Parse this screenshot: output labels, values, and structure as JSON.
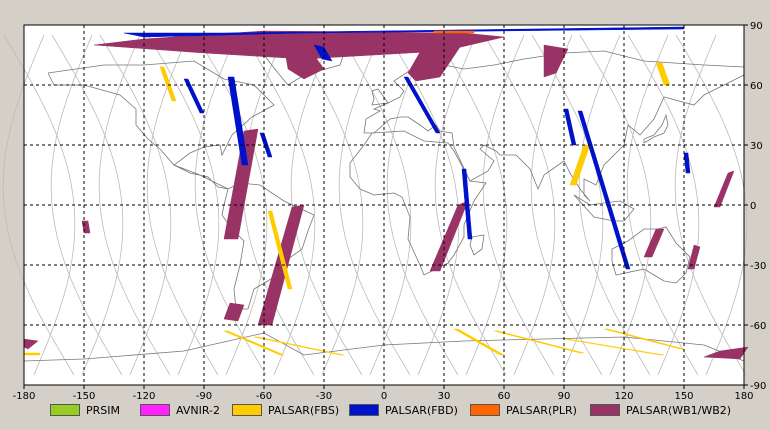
{
  "x_axis": {
    "ticks": [
      -180,
      -150,
      -120,
      -90,
      -60,
      -30,
      0,
      30,
      60,
      90,
      120,
      150,
      180
    ],
    "range": [
      -180,
      180
    ]
  },
  "y_axis": {
    "ticks": [
      90,
      60,
      30,
      0,
      -30,
      -60,
      -90
    ],
    "range": [
      -90,
      90
    ]
  },
  "colors": {
    "prsim": "#99cc22",
    "avnir": "#ff22ff",
    "fbs": "#ffcc00",
    "fbd": "#0011cc",
    "plr": "#ff6600",
    "wb": "#993366",
    "coast": "#777777",
    "orbit": "#bbbbbb"
  },
  "legend": [
    {
      "key": "prsim",
      "label": "PRSIM"
    },
    {
      "key": "avnir",
      "label": "AVNIR-2"
    },
    {
      "key": "fbs",
      "label": "PALSAR(FBS)"
    },
    {
      "key": "fbd",
      "label": "PALSAR(FBD)"
    },
    {
      "key": "plr",
      "label": "PALSAR(PLR)"
    },
    {
      "key": "wb",
      "label": "PALSAR(WB1/WB2)"
    }
  ],
  "swaths": {
    "wb": [
      {
        "p": [
          [
            -70,
            37
          ],
          [
            -63,
            38
          ],
          [
            -73,
            -17
          ],
          [
            -80,
            -17
          ]
        ]
      },
      {
        "p": [
          [
            -46,
            -1
          ],
          [
            -40,
            0
          ],
          [
            -56,
            -60
          ],
          [
            -63,
            -60
          ]
        ]
      },
      {
        "p": [
          [
            -77,
            -49
          ],
          [
            -70,
            -50
          ],
          [
            -73,
            -58
          ],
          [
            -80,
            -57
          ]
        ]
      },
      {
        "p": [
          [
            37,
            0
          ],
          [
            42,
            2
          ],
          [
            28,
            -33
          ],
          [
            23,
            -33
          ]
        ]
      },
      {
        "p": [
          [
            136,
            -12
          ],
          [
            140,
            -12
          ],
          [
            134,
            -26
          ],
          [
            130,
            -26
          ]
        ]
      },
      {
        "p": [
          [
            -151,
            -8
          ],
          [
            -148,
            -8
          ],
          [
            -147,
            -14
          ],
          [
            -150,
            -14
          ]
        ]
      },
      {
        "p": [
          [
            -120,
            83
          ],
          [
            -60,
            87
          ],
          [
            40,
            86
          ],
          [
            60,
            84
          ],
          [
            30,
            77
          ],
          [
            -40,
            73
          ],
          [
            -90,
            76
          ],
          [
            -145,
            80
          ]
        ]
      },
      {
        "p": [
          [
            -50,
            80
          ],
          [
            -40,
            82
          ],
          [
            -30,
            68
          ],
          [
            -40,
            63
          ],
          [
            -48,
            68
          ]
        ]
      },
      {
        "p": [
          [
            20,
            80
          ],
          [
            40,
            82
          ],
          [
            28,
            64
          ],
          [
            16,
            62
          ],
          [
            12,
            66
          ]
        ]
      },
      {
        "p": [
          [
            80,
            80
          ],
          [
            92,
            78
          ],
          [
            86,
            66
          ],
          [
            80,
            64
          ]
        ]
      },
      {
        "p": [
          [
            172,
            16
          ],
          [
            175,
            17
          ],
          [
            168,
            -1
          ],
          [
            165,
            -1
          ]
        ]
      },
      {
        "p": [
          [
            155,
            -20
          ],
          [
            158,
            -21
          ],
          [
            155,
            -32
          ],
          [
            152,
            -32
          ]
        ]
      },
      {
        "p": [
          [
            168,
            -73
          ],
          [
            182,
            -71
          ],
          [
            178,
            -77
          ],
          [
            160,
            -76
          ]
        ]
      },
      {
        "p": [
          [
            -180,
            -67
          ],
          [
            -173,
            -68
          ],
          [
            -178,
            -72
          ],
          [
            -180,
            -71
          ]
        ]
      }
    ],
    "fbd": [
      {
        "p": [
          [
            -80,
            86
          ],
          [
            150,
            89
          ],
          [
            150,
            88
          ],
          [
            -40,
            86
          ],
          [
            -120,
            84
          ],
          [
            -130,
            86
          ]
        ]
      },
      {
        "p": [
          [
            -78,
            64
          ],
          [
            -75,
            64
          ],
          [
            -68,
            20
          ],
          [
            -71,
            20
          ]
        ]
      },
      {
        "p": [
          [
            -35,
            80
          ],
          [
            -30,
            79
          ],
          [
            -26,
            72
          ],
          [
            -31,
            73
          ]
        ]
      },
      {
        "p": [
          [
            -100,
            63
          ],
          [
            -98,
            63
          ],
          [
            -90,
            46
          ],
          [
            -92,
            46
          ]
        ]
      },
      {
        "p": [
          [
            -62,
            36
          ],
          [
            -60,
            36
          ],
          [
            -56,
            24
          ],
          [
            -58,
            24
          ]
        ]
      },
      {
        "p": [
          [
            10,
            64
          ],
          [
            12,
            64
          ],
          [
            28,
            36
          ],
          [
            26,
            36
          ]
        ]
      },
      {
        "p": [
          [
            39,
            18
          ],
          [
            41,
            18
          ],
          [
            44,
            -17
          ],
          [
            42,
            -17
          ]
        ]
      },
      {
        "p": [
          [
            90,
            48
          ],
          [
            92,
            48
          ],
          [
            96,
            30
          ],
          [
            94,
            30
          ]
        ]
      },
      {
        "p": [
          [
            97,
            47
          ],
          [
            99,
            47
          ],
          [
            123,
            -32
          ],
          [
            121,
            -32
          ]
        ]
      },
      {
        "p": [
          [
            150,
            26
          ],
          [
            152,
            26
          ],
          [
            153,
            16
          ],
          [
            151,
            16
          ]
        ]
      }
    ],
    "fbs": [
      {
        "p": [
          [
            -112,
            69
          ],
          [
            -110,
            69
          ],
          [
            -104,
            52
          ],
          [
            -106,
            52
          ]
        ]
      },
      {
        "p": [
          [
            -58,
            -3
          ],
          [
            -56,
            -3
          ],
          [
            -46,
            -42
          ],
          [
            -48,
            -42
          ]
        ]
      },
      {
        "p": [
          [
            -80,
            -63
          ],
          [
            -78,
            -63
          ],
          [
            -50,
            -75
          ],
          [
            -52,
            -75
          ]
        ]
      },
      {
        "p": [
          [
            -65,
            -66
          ],
          [
            -63,
            -66
          ],
          [
            -20,
            -75
          ],
          [
            -22,
            -75
          ]
        ]
      },
      {
        "p": [
          [
            55,
            -63
          ],
          [
            57,
            -63
          ],
          [
            100,
            -74
          ],
          [
            98,
            -74
          ]
        ]
      },
      {
        "p": [
          [
            90,
            -67
          ],
          [
            92,
            -67
          ],
          [
            140,
            -75
          ],
          [
            138,
            -75
          ]
        ]
      },
      {
        "p": [
          [
            35,
            -62
          ],
          [
            37,
            -62
          ],
          [
            60,
            -75
          ],
          [
            58,
            -75
          ]
        ]
      },
      {
        "p": [
          [
            110,
            -62
          ],
          [
            112,
            -62
          ],
          [
            150,
            -72
          ],
          [
            148,
            -72
          ]
        ]
      },
      {
        "p": [
          [
            100,
            30
          ],
          [
            103,
            30
          ],
          [
            96,
            10
          ],
          [
            93,
            10
          ]
        ]
      },
      {
        "p": [
          [
            136,
            71
          ],
          [
            139,
            71
          ],
          [
            143,
            60
          ],
          [
            140,
            60
          ]
        ]
      },
      {
        "p": [
          [
            -180,
            -74
          ],
          [
            -172,
            -74
          ],
          [
            -172,
            -75
          ],
          [
            -180,
            -75
          ]
        ]
      }
    ],
    "plr": [
      {
        "p": [
          [
            25,
            87
          ],
          [
            45,
            87
          ],
          [
            45,
            86
          ],
          [
            25,
            86
          ]
        ]
      }
    ]
  }
}
